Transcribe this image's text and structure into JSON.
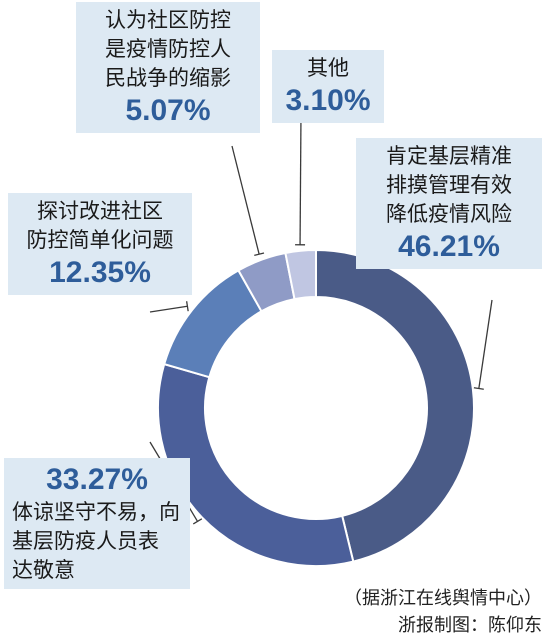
{
  "chart_data": {
    "type": "pie",
    "donut": true,
    "slices": [
      {
        "label_lines": [
          "肯定基层精准",
          "排摸管理有效",
          "降低疫情风险"
        ],
        "value": 46.21,
        "value_text": "46.21%",
        "color": "#4a5b87"
      },
      {
        "label_lines": [
          "体谅坚守不易，向",
          "基层防疫人员表",
          "达敬意"
        ],
        "value": 33.27,
        "value_text": "33.27%",
        "color": "#4b5f9a"
      },
      {
        "label_lines": [
          "探讨改进社区",
          "防控简单化问题"
        ],
        "value": 12.35,
        "value_text": "12.35%",
        "color": "#5b7fb8"
      },
      {
        "label_lines": [
          "认为社区防控",
          "是疫情防控人",
          "民战争的缩影"
        ],
        "value": 5.07,
        "value_text": "5.07%",
        "color": "#8f9bc6"
      },
      {
        "label_lines": [
          "其他"
        ],
        "value": 3.1,
        "value_text": "3.10%",
        "color": "#c0c6e2"
      }
    ]
  },
  "source_note": "（据浙江在线舆情中心）",
  "credit": "浙报制图：陈仰东"
}
